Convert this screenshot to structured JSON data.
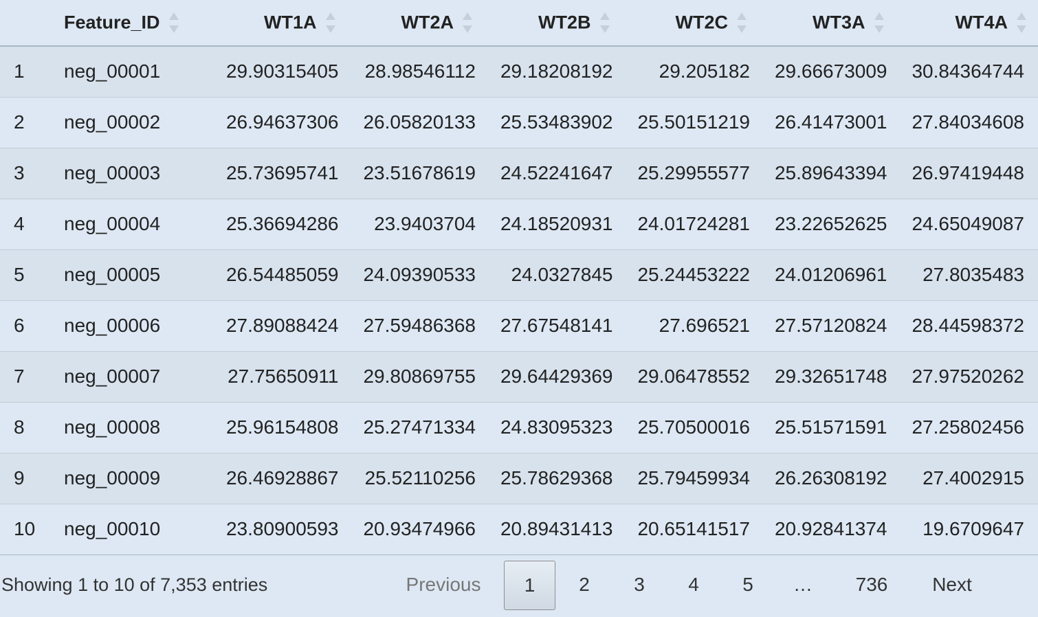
{
  "table": {
    "columns": [
      {
        "key": "idx",
        "label": ""
      },
      {
        "key": "feature_id",
        "label": "Feature_ID"
      },
      {
        "key": "wt1a",
        "label": "WT1A"
      },
      {
        "key": "wt2a",
        "label": "WT2A"
      },
      {
        "key": "wt2b",
        "label": "WT2B"
      },
      {
        "key": "wt2c",
        "label": "WT2C"
      },
      {
        "key": "wt3a",
        "label": "WT3A"
      },
      {
        "key": "wt4a",
        "label": "WT4A"
      }
    ],
    "rows": [
      [
        "1",
        "neg_00001",
        "29.90315405",
        "28.98546112",
        "29.18208192",
        "29.205182",
        "29.66673009",
        "30.84364744"
      ],
      [
        "2",
        "neg_00002",
        "26.94637306",
        "26.05820133",
        "25.53483902",
        "25.50151219",
        "26.41473001",
        "27.84034608"
      ],
      [
        "3",
        "neg_00003",
        "25.73695741",
        "23.51678619",
        "24.52241647",
        "25.29955577",
        "25.89643394",
        "26.97419448"
      ],
      [
        "4",
        "neg_00004",
        "25.36694286",
        "23.9403704",
        "24.18520931",
        "24.01724281",
        "23.22652625",
        "24.65049087"
      ],
      [
        "5",
        "neg_00005",
        "26.54485059",
        "24.09390533",
        "24.0327845",
        "25.24453222",
        "24.01206961",
        "27.8035483"
      ],
      [
        "6",
        "neg_00006",
        "27.89088424",
        "27.59486368",
        "27.67548141",
        "27.696521",
        "27.57120824",
        "28.44598372"
      ],
      [
        "7",
        "neg_00007",
        "27.75650911",
        "29.80869755",
        "29.64429369",
        "29.06478552",
        "29.32651748",
        "27.97520262"
      ],
      [
        "8",
        "neg_00008",
        "25.96154808",
        "25.27471334",
        "24.83095323",
        "25.70500016",
        "25.51571591",
        "27.25802456"
      ],
      [
        "9",
        "neg_00009",
        "26.46928867",
        "25.52110256",
        "25.78629368",
        "25.79459934",
        "26.26308192",
        "27.4002915"
      ],
      [
        "10",
        "neg_00010",
        "23.80900593",
        "20.93474966",
        "20.89431413",
        "20.65141517",
        "20.92841374",
        "19.6709647"
      ]
    ]
  },
  "footer": {
    "info": "Showing 1 to 10 of 7,353 entries",
    "pagination": {
      "previous": "Previous",
      "pages": [
        "1",
        "2",
        "3",
        "4",
        "5"
      ],
      "ellipsis": "…",
      "last": "736",
      "next": "Next",
      "current": "1"
    }
  },
  "icons": {
    "sort": "sort-both-icon"
  }
}
